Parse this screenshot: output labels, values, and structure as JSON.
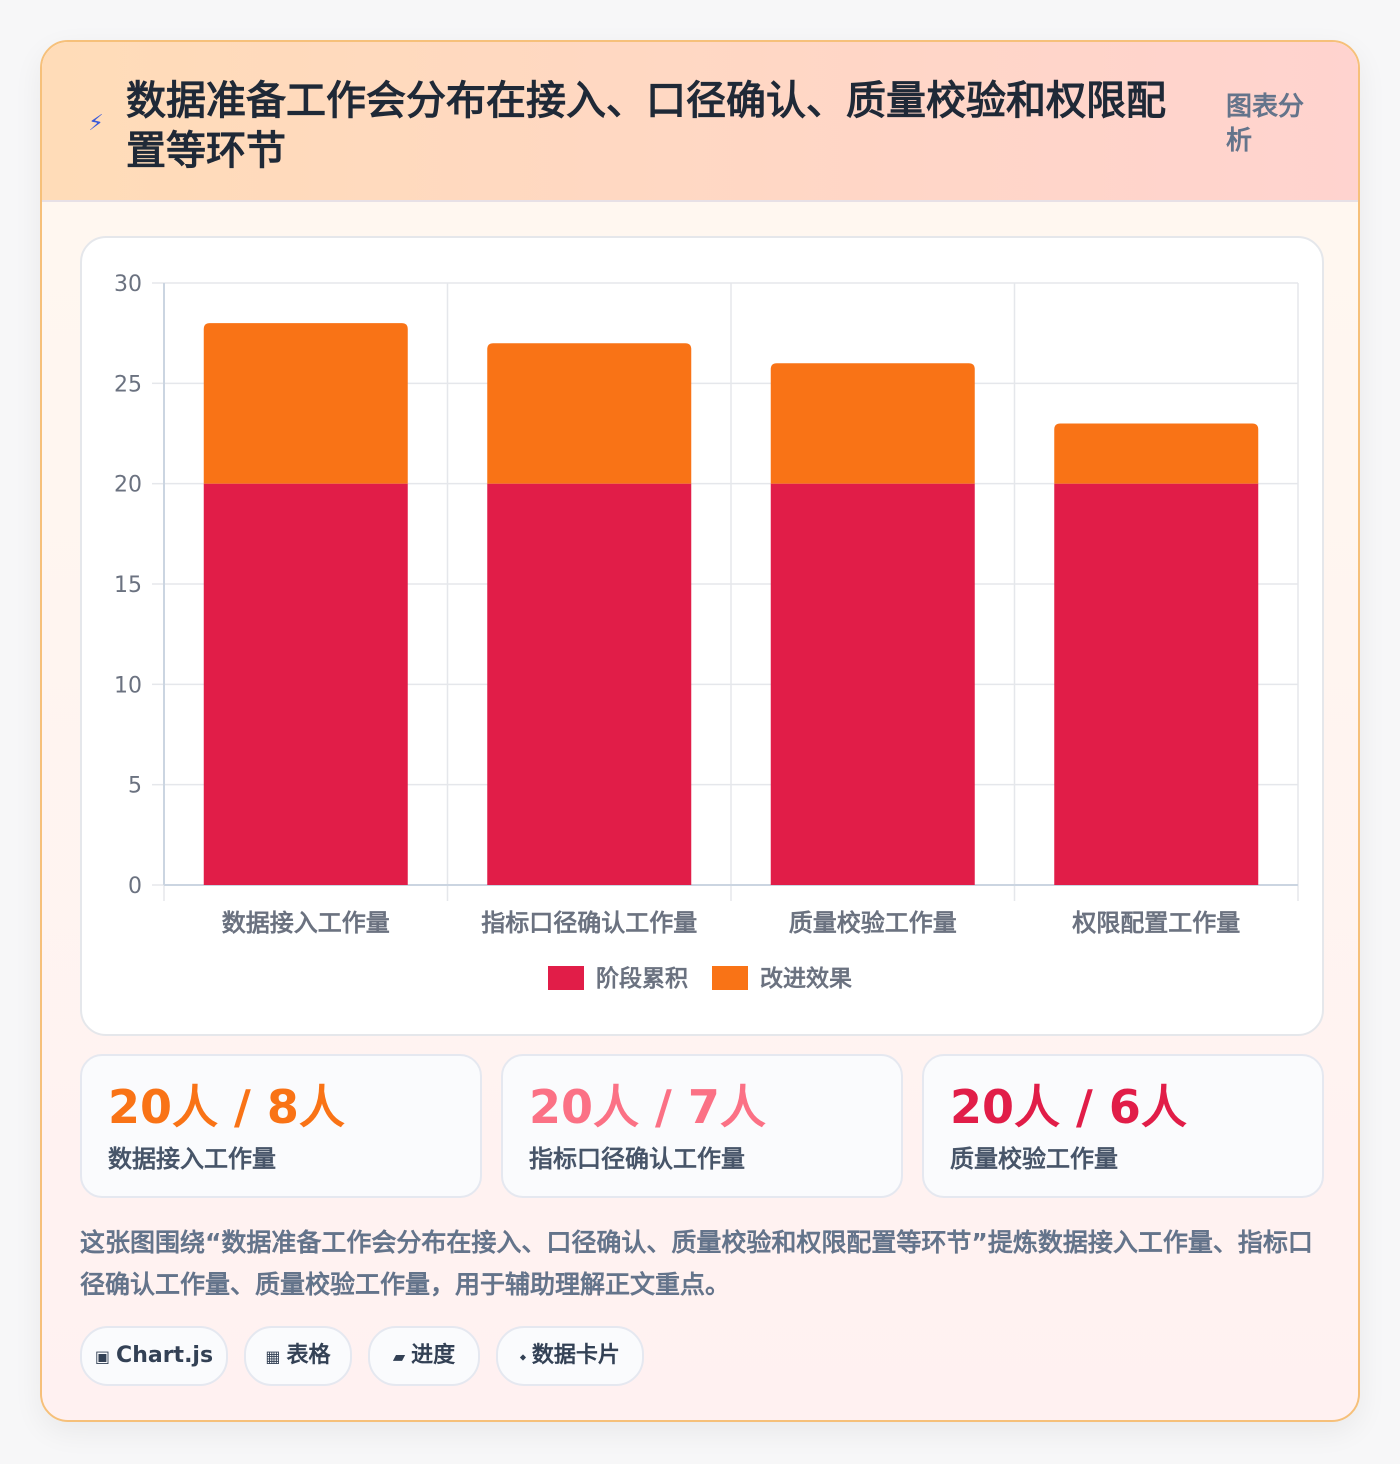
{
  "header": {
    "icon": "bolt-icon",
    "title": "数据准备工作会分布在接入、口径确认、质量校验和权限配置等环节",
    "tag": "图表分析"
  },
  "chart_data": {
    "type": "bar",
    "stacked": true,
    "categories": [
      "数据接入工作量",
      "指标口径确认工作量",
      "质量校验工作量",
      "权限配置工作量"
    ],
    "series": [
      {
        "name": "阶段累积",
        "values": [
          20,
          20,
          20,
          20
        ],
        "color": "#e11d48"
      },
      {
        "name": "改进效果",
        "values": [
          8,
          7,
          6,
          3
        ],
        "color": "#f97316"
      }
    ],
    "ylim": [
      0,
      30
    ],
    "yticks": [
      0,
      5,
      10,
      15,
      20,
      25,
      30
    ],
    "grid": true,
    "legend": "bottom"
  },
  "stats": [
    {
      "value": "20人 / 8人",
      "label": "数据接入工作量",
      "color": "#f97316"
    },
    {
      "value": "20人 / 7人",
      "label": "指标口径确认工作量",
      "color": "#fb7185"
    },
    {
      "value": "20人 / 6人",
      "label": "质量校验工作量",
      "color": "#e11d48"
    }
  ],
  "description": "这张图围绕“数据准备工作会分布在接入、口径确认、质量校验和权限配置等环节”提炼数据接入工作量、指标口径确认工作量、质量校验工作量，用于辅助理解正文重点。",
  "chips": [
    {
      "icon": "▣",
      "icon_name": "chart-icon",
      "label": "Chart.js"
    },
    {
      "icon": "▦",
      "icon_name": "table-icon",
      "label": "表格"
    },
    {
      "icon": "▰",
      "icon_name": "progress-icon",
      "label": "进度"
    },
    {
      "icon": "⬩",
      "icon_name": "diamond-icon",
      "label": "数据卡片"
    }
  ]
}
